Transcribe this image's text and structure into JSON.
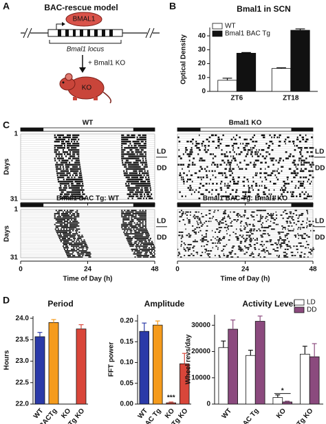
{
  "panel_labels": [
    "A",
    "B",
    "C",
    "D"
  ],
  "diagram": {
    "title": "BAC-rescue model",
    "protein": "BMAL1",
    "locus": "Bmal1 locus",
    "cross": "+ Bmal1 KO",
    "mouse": "KO"
  },
  "actograms": {
    "titles": [
      "WT",
      "Bmal1 KO",
      "Bmal1 BAC Tg: WT",
      "Bmal1 BAC Tg: Bmal1 KO"
    ],
    "ylabel": "Days",
    "first_day": "1",
    "last_day": "31",
    "conditions": [
      "LD",
      "DD"
    ],
    "xticks": [
      0,
      24,
      48
    ],
    "xlabel": "Time of Day (h)"
  },
  "chart_data": [
    {
      "type": "bar",
      "title": "Bmal1 in SCN",
      "ylabel": "Optical Density",
      "categories": [
        "ZT6",
        "ZT18"
      ],
      "series": [
        {
          "name": "WT",
          "color": "#ffffff",
          "values": [
            8,
            16.5
          ],
          "errors": [
            1.5,
            0.5
          ]
        },
        {
          "name": "Bmal1 BAC Tg",
          "color": "#111111",
          "values": [
            27.5,
            44
          ],
          "errors": [
            0.5,
            1
          ]
        }
      ],
      "ylim": [
        0,
        46
      ],
      "yticks": [
        0,
        10,
        20,
        30,
        40
      ],
      "legend": "upper left"
    },
    {
      "type": "bar",
      "title": "Period",
      "ylabel": "Hours",
      "categories": [
        "WT",
        "BACTg",
        "KO",
        "BACTg KO"
      ],
      "values": [
        23.57,
        23.9,
        null,
        23.75
      ],
      "errors": [
        0.1,
        0.07,
        null,
        0.1
      ],
      "colors": [
        "#2b3aa8",
        "#f59b1c",
        "#888888",
        "#d9463a"
      ],
      "ylim": [
        22,
        24.05
      ],
      "yticks": [
        {
          "value": 22,
          "label": "22.0"
        },
        {
          "value": 22.5,
          "label": "22.5"
        },
        {
          "value": 23,
          "label": "23.0"
        },
        {
          "value": 23.5,
          "label": "23.5"
        },
        {
          "value": 24,
          "label": "24.0"
        }
      ]
    },
    {
      "type": "bar",
      "title": "Amplitude",
      "ylabel": "FFT power",
      "categories": [
        "WT",
        "BAC Tg",
        "KO",
        "BAC Tg KO"
      ],
      "values": [
        0.175,
        0.19,
        0.003,
        0.097
      ],
      "errors": [
        0.02,
        0.01,
        0.002,
        0.025
      ],
      "colors": [
        "#2b3aa8",
        "#f59b1c",
        "#d9463a",
        "#d9463a"
      ],
      "ylim": [
        0,
        0.215
      ],
      "yticks": [
        {
          "value": 0,
          "label": "0.00"
        },
        0.05,
        {
          "value": 0.1,
          "label": "0.10"
        },
        0.15,
        {
          "value": 0.2,
          "label": "0.20"
        }
      ],
      "annotation": {
        "text": "***",
        "at": "KO"
      }
    },
    {
      "type": "bar",
      "title": "Activity Level",
      "ylabel": "Wheel revs/day",
      "categories": [
        "WT",
        "BAC Tg",
        "KO",
        "BAC Tg KO"
      ],
      "series": [
        {
          "name": "LD",
          "color": "#ffffff",
          "values": [
            21500,
            18500,
            2500,
            19000
          ],
          "errors": [
            2500,
            2000,
            1000,
            3000
          ]
        },
        {
          "name": "DD",
          "color": "#8b4a7e",
          "values": [
            28500,
            31500,
            800,
            18000
          ],
          "errors": [
            3500,
            2000,
            300,
            5000
          ]
        }
      ],
      "ylim": [
        0,
        34000
      ],
      "yticks": [
        0,
        10000,
        20000,
        30000
      ],
      "legend": "upper right",
      "annotation": {
        "text": "*",
        "at": "KO"
      }
    }
  ]
}
